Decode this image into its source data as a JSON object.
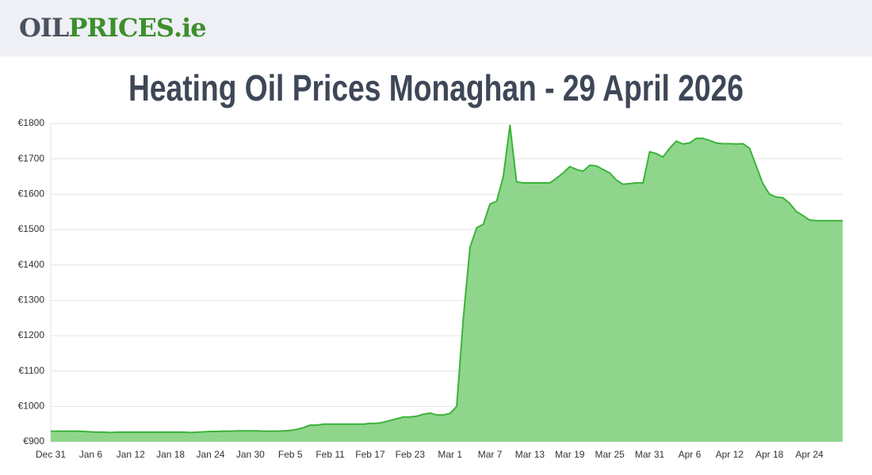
{
  "header": {
    "logo_parts": [
      "OIL",
      "PRICES",
      ".ie"
    ]
  },
  "chart_data": {
    "type": "area",
    "title": "Heating Oil Prices Monaghan - 29 April 2026",
    "categories": [
      "Dec 31",
      null,
      null,
      null,
      null,
      null,
      "Jan 6",
      null,
      null,
      null,
      null,
      null,
      "Jan 12",
      null,
      null,
      null,
      null,
      null,
      "Jan 18",
      null,
      null,
      null,
      null,
      null,
      "Jan 24",
      null,
      null,
      null,
      null,
      null,
      "Jan 30",
      null,
      null,
      null,
      null,
      null,
      "Feb 5",
      null,
      null,
      null,
      null,
      null,
      "Feb 11",
      null,
      null,
      null,
      null,
      null,
      "Feb 17",
      null,
      null,
      null,
      null,
      null,
      "Feb 23",
      null,
      null,
      null,
      null,
      null,
      "Mar 1",
      null,
      null,
      null,
      null,
      null,
      "Mar 7",
      null,
      null,
      null,
      null,
      null,
      "Mar 13",
      null,
      null,
      null,
      null,
      null,
      "Mar 19",
      null,
      null,
      null,
      null,
      null,
      "Mar 25",
      null,
      null,
      null,
      null,
      null,
      "Mar 31",
      null,
      null,
      null,
      null,
      null,
      "Apr 6",
      null,
      null,
      null,
      null,
      null,
      "Apr 12",
      null,
      null,
      null,
      null,
      null,
      "Apr 18",
      null,
      null,
      null,
      null,
      null,
      "Apr 24",
      null,
      null,
      null,
      null,
      null
    ],
    "values": [
      930,
      930,
      930,
      930,
      930,
      929,
      928,
      927,
      927,
      926,
      927,
      927,
      927,
      927,
      927,
      927,
      927,
      927,
      927,
      927,
      927,
      926,
      927,
      928,
      929,
      929,
      930,
      930,
      931,
      931,
      931,
      931,
      930,
      930,
      930,
      931,
      932,
      935,
      940,
      947,
      947,
      950,
      950,
      950,
      950,
      950,
      950,
      950,
      952,
      952,
      955,
      960,
      965,
      970,
      970,
      972,
      978,
      981,
      976,
      976,
      980,
      1000,
      1250,
      1450,
      1505,
      1515,
      1572,
      1580,
      1650,
      1795,
      1635,
      1632,
      1632,
      1632,
      1632,
      1632,
      1645,
      1660,
      1678,
      1670,
      1665,
      1682,
      1680,
      1670,
      1660,
      1640,
      1628,
      1630,
      1632,
      1632,
      1720,
      1715,
      1705,
      1730,
      1750,
      1742,
      1745,
      1758,
      1758,
      1752,
      1745,
      1743,
      1743,
      1742,
      1743,
      1730,
      1680,
      1630,
      1600,
      1592,
      1590,
      1575,
      1552,
      1540,
      1527,
      1525,
      1525,
      1525,
      1525,
      1525
    ],
    "line_color": "#3cb33a",
    "fill_color": "#8fd68c",
    "ylim": [
      900,
      1800
    ],
    "yticks": [
      {
        "value": 900,
        "label": "€900"
      },
      {
        "value": 1000,
        "label": "€1000"
      },
      {
        "value": 1100,
        "label": "€1100"
      },
      {
        "value": 1200,
        "label": "€1200"
      },
      {
        "value": 1300,
        "label": "€1300"
      },
      {
        "value": 1400,
        "label": "€1400"
      },
      {
        "value": 1500,
        "label": "€1500"
      },
      {
        "value": 1600,
        "label": "€1600"
      },
      {
        "value": 1700,
        "label": "€1700"
      },
      {
        "value": 1800,
        "label": "€1800"
      }
    ],
    "grid": true
  }
}
